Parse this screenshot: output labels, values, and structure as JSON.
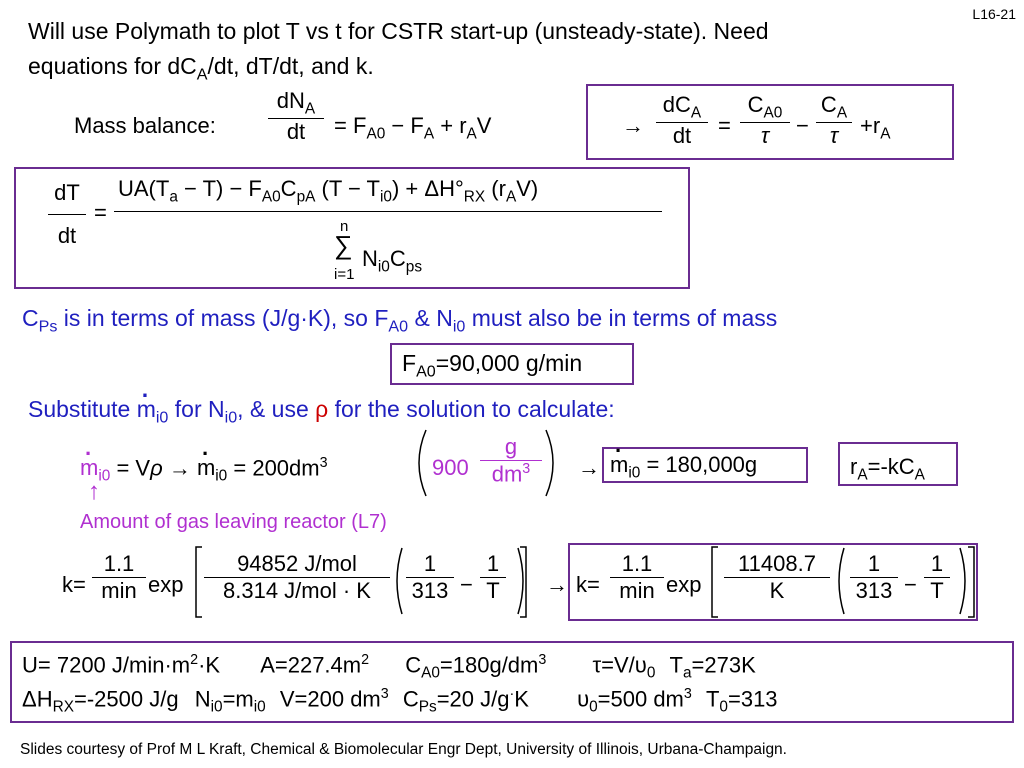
{
  "slide_number": "L16-21",
  "intro": {
    "line1": "Will use Polymath to plot T vs t for CSTR start-up (unsteady-state).  Need",
    "line2_pre": "equations for dC",
    "line2_sub": "A",
    "line2_post": "/dt, dT/dt, and k."
  },
  "mass_balance": {
    "label": "Mass balance:",
    "numerator": "dN",
    "numerator_sub": "A",
    "denominator": "dt",
    "rhs_eq": "=",
    "rhs_F": "F",
    "rhs_F_sub": "A0",
    "rhs_minus": "−",
    "rhs_F2": "F",
    "rhs_F2_sub": "A",
    "rhs_plus": "+",
    "rhs_r": "r",
    "rhs_r_sub": "A",
    "rhs_V": "V"
  },
  "concentration_eq": {
    "arrow": "→",
    "num": "dC",
    "num_sub": "A",
    "den": "dt",
    "eq": "=",
    "t1_num": "C",
    "t1_num_sub": "A0",
    "t1_den": "τ",
    "minus": "−",
    "t2_num": "C",
    "t2_num_sub": "A",
    "t2_den": "τ",
    "plus": "+",
    "r": "r",
    "r_sub": "A"
  },
  "energy_balance": {
    "lhs_num": "dT",
    "lhs_den": "dt",
    "eq": "=",
    "numerator": "UA(T",
    "num_Ta_sub": "a",
    "num_part2": " − T) − F",
    "num_FA0_sub": "A0",
    "num_C": "C",
    "num_CpA_sub": "pA",
    "num_part3": "(T − T",
    "num_Ti0_sub": "i0",
    "num_part4": ") + ΔH°",
    "num_RX_sub": "RX",
    "num_part5": "(r",
    "num_rA_sub": "A",
    "num_part6": "V)",
    "sum_top": "n",
    "sum_symbol": "∑",
    "sum_bottom": "i=1",
    "den_N": "N",
    "den_N_sub": "i0",
    "den_C": "C",
    "den_C_sub": "ps"
  },
  "cps_note": {
    "pre": "C",
    "sub1": "Ps",
    "mid1": " is in terms of mass (J/g·K), so F",
    "sub2": "A0",
    "mid2": " & N",
    "sub3": "i0",
    "post": " must also be in terms of mass"
  },
  "fa0_box": {
    "pre": "F",
    "sub": "A0",
    "post": "=90,000 g/min"
  },
  "substitute": {
    "pre": "Substitute ",
    "m": "m",
    "m_sub": "i0",
    "mid1": " for N",
    "n_sub": "i0",
    "mid2": ", & use ",
    "rho": "ρ",
    "post": " for the solution to calculate:"
  },
  "mass_flow_eq": {
    "m": "m",
    "m_sub": "i0",
    "eq1": "= V",
    "rho": "ρ",
    "arrow": "→",
    "m2": "m",
    "m2_sub": "i0",
    "eq2": "= 200dm",
    "exp": "3",
    "val": "900",
    "unit_num": "g",
    "unit_den": "dm",
    "unit_den_exp": "3",
    "arrow2": "→",
    "m3": "m",
    "m3_sub": "i0",
    "result": "= 180,000g"
  },
  "ra_box": {
    "pre": "r",
    "sub1": "A",
    "mid": "=-kC",
    "sub2": "A"
  },
  "up_arrow": "↑",
  "gas_note": "Amount of gas leaving reactor (L7)",
  "k_eq_left": {
    "k": "k=",
    "c_num": "1.1",
    "c_den": "min",
    "exp": "exp",
    "e_num": "94852 J/mol",
    "e_den": "8.314 J/mol · K",
    "t1_num": "1",
    "t1_den": "313",
    "minus": "−",
    "t2_num": "1",
    "t2_den": "T"
  },
  "k_eq_right": {
    "arrow": "→",
    "k": "k=",
    "c_num": "1.1",
    "c_den": "min",
    "exp": "exp",
    "e_num": "11408.7",
    "e_den": "K",
    "t1_num": "1",
    "t1_den": "313",
    "minus": "−",
    "t2_num": "1",
    "t2_den": "T"
  },
  "params": {
    "row1": {
      "u": "U= 7200 J/min·m",
      "u_sup": "2",
      "u_post": "·K",
      "a": "A=227.4m",
      "a_sup": "2",
      "ca0_pre": "C",
      "ca0_sub": "A0",
      "ca0_post": "=180g/dm",
      "ca0_sup": "3",
      "tau": "τ=V/υ",
      "tau_sub": "0",
      "ta_pre": "T",
      "ta_sub": "a",
      "ta_post": "=273K"
    },
    "row2": {
      "dh_pre": "ΔH",
      "dh_sub": "RX",
      "dh_post": "=-2500 J/g",
      "ni_pre": "N",
      "ni_sub": "i0",
      "ni_mid": "=m",
      "ni_sub2": "i0",
      "v": "V=200 dm",
      "v_sup": "3",
      "cps_pre": "C",
      "cps_sub": "Ps",
      "cps_post": "=20 J/g",
      "cps_dot": "·",
      "cps_k": "K",
      "u0_pre": "υ",
      "u0_sub": "0",
      "u0_post": "=500 dm",
      "u0_sup": "3",
      "t0_pre": "T",
      "t0_sub": "0",
      "t0_post": "=313"
    }
  },
  "footer": "Slides courtesy of Prof M L Kraft, Chemical & Biomolecular Engr Dept, University of Illinois, Urbana-Champaign.",
  "colors": {
    "box_border": "#6a2c91",
    "blue_text": "#1f1fbf",
    "purple_text": "#7030a0",
    "magenta_text": "#b030d0"
  }
}
